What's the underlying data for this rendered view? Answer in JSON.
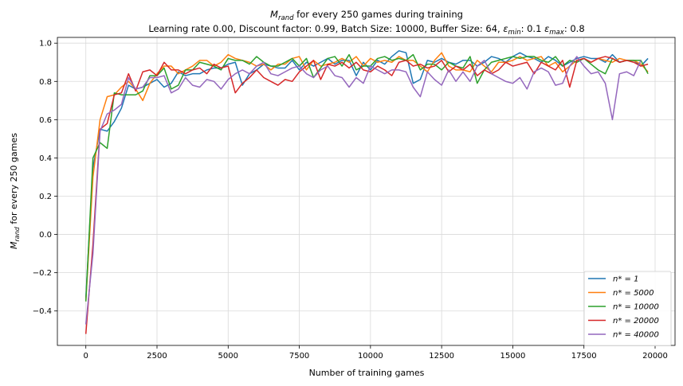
{
  "chart_data": {
    "type": "line",
    "title_main": "for every 250 games during training",
    "title_main_symbol": "M",
    "title_main_sub": "rand",
    "subtitle_prefix": "Learning rate 0.00, Discount factor: 0.99, Batch Size: 10000, Buffer Size: 64, ",
    "subtitle_eps_min_label": "min",
    "subtitle_eps_min_value": ": 0.1 ",
    "subtitle_eps_max_label": "max",
    "subtitle_eps_max_value": ": 0.8",
    "xlabel": "Number of training games",
    "ylabel_symbol": "M",
    "ylabel_sub": "rand",
    "ylabel_rest": " for every 250 games",
    "xlim": [
      -1000,
      20700
    ],
    "ylim": [
      -0.58,
      1.03
    ],
    "xticks": [
      0,
      2500,
      5000,
      7500,
      10000,
      12500,
      15000,
      17500,
      20000
    ],
    "yticks": [
      -0.4,
      -0.2,
      0.0,
      0.2,
      0.4,
      0.6,
      0.8,
      1.0
    ],
    "xtick_labels": [
      "0",
      "2500",
      "5000",
      "7500",
      "10000",
      "12500",
      "15000",
      "17500",
      "20000"
    ],
    "ytick_labels": [
      "−0.4",
      "−0.2",
      "0.0",
      "0.2",
      "0.4",
      "0.6",
      "0.8",
      "1.0"
    ],
    "grid": true,
    "legend_position": "lower-right",
    "x_start": 0,
    "x_step": 250,
    "series": [
      {
        "name": "n* = 1",
        "label_prefix": "n* = ",
        "label_value": "1",
        "color": "#1f77b4",
        "values": [
          -0.33,
          0.35,
          0.55,
          0.54,
          0.59,
          0.66,
          0.78,
          0.76,
          0.77,
          0.79,
          0.81,
          0.77,
          0.79,
          0.85,
          0.83,
          0.84,
          0.84,
          0.86,
          0.87,
          0.87,
          0.89,
          0.9,
          0.78,
          0.84,
          0.86,
          0.89,
          0.88,
          0.87,
          0.87,
          0.91,
          0.86,
          0.9,
          0.88,
          0.9,
          0.92,
          0.89,
          0.91,
          0.91,
          0.83,
          0.9,
          0.86,
          0.91,
          0.89,
          0.93,
          0.96,
          0.95,
          0.79,
          0.81,
          0.91,
          0.9,
          0.92,
          0.9,
          0.89,
          0.91,
          0.91,
          0.88,
          0.9,
          0.93,
          0.92,
          0.9,
          0.93,
          0.95,
          0.93,
          0.92,
          0.9,
          0.93,
          0.91,
          0.88,
          0.9,
          0.92,
          0.93,
          0.92,
          0.92,
          0.9,
          0.94,
          0.9,
          0.91,
          0.91,
          0.88,
          0.92
        ]
      },
      {
        "name": "n* = 5000",
        "label_prefix": "n* = ",
        "label_value": "5000",
        "color": "#ff7f0e",
        "values": [
          -0.35,
          0.3,
          0.6,
          0.72,
          0.73,
          0.77,
          0.8,
          0.76,
          0.7,
          0.79,
          0.84,
          0.88,
          0.88,
          0.84,
          0.86,
          0.88,
          0.91,
          0.91,
          0.88,
          0.9,
          0.94,
          0.92,
          0.91,
          0.9,
          0.88,
          0.89,
          0.86,
          0.89,
          0.89,
          0.92,
          0.93,
          0.86,
          0.91,
          0.88,
          0.89,
          0.9,
          0.92,
          0.9,
          0.93,
          0.88,
          0.92,
          0.9,
          0.91,
          0.9,
          0.93,
          0.91,
          0.91,
          0.88,
          0.85,
          0.91,
          0.95,
          0.88,
          0.86,
          0.86,
          0.85,
          0.91,
          0.88,
          0.85,
          0.9,
          0.9,
          0.91,
          0.93,
          0.91,
          0.92,
          0.93,
          0.88,
          0.9,
          0.85,
          0.88,
          0.91,
          0.92,
          0.9,
          0.92,
          0.91,
          0.9,
          0.92,
          0.91,
          0.91,
          0.89,
          0.85
        ]
      },
      {
        "name": "n* = 10000",
        "label_prefix": "n* = ",
        "label_value": "10000",
        "color": "#2ca02c",
        "values": [
          -0.35,
          0.4,
          0.48,
          0.45,
          0.74,
          0.73,
          0.73,
          0.73,
          0.75,
          0.83,
          0.83,
          0.87,
          0.76,
          0.78,
          0.86,
          0.86,
          0.9,
          0.89,
          0.88,
          0.86,
          0.92,
          0.91,
          0.91,
          0.89,
          0.93,
          0.9,
          0.88,
          0.88,
          0.9,
          0.92,
          0.88,
          0.92,
          0.82,
          0.87,
          0.92,
          0.93,
          0.88,
          0.94,
          0.86,
          0.88,
          0.88,
          0.92,
          0.93,
          0.91,
          0.92,
          0.91,
          0.94,
          0.86,
          0.89,
          0.89,
          0.86,
          0.9,
          0.88,
          0.87,
          0.93,
          0.79,
          0.86,
          0.9,
          0.91,
          0.92,
          0.93,
          0.92,
          0.93,
          0.93,
          0.91,
          0.9,
          0.93,
          0.88,
          0.91,
          0.9,
          0.92,
          0.89,
          0.86,
          0.84,
          0.92,
          0.9,
          0.91,
          0.91,
          0.91,
          0.84
        ]
      },
      {
        "name": "n* = 20000",
        "label_prefix": "n* = ",
        "label_value": "20000",
        "color": "#d62728",
        "values": [
          -0.52,
          -0.05,
          0.55,
          0.58,
          0.73,
          0.74,
          0.84,
          0.75,
          0.85,
          0.86,
          0.83,
          0.9,
          0.86,
          0.86,
          0.84,
          0.86,
          0.87,
          0.84,
          0.89,
          0.87,
          0.88,
          0.74,
          0.79,
          0.82,
          0.86,
          0.82,
          0.8,
          0.78,
          0.81,
          0.8,
          0.85,
          0.88,
          0.91,
          0.81,
          0.89,
          0.88,
          0.9,
          0.87,
          0.9,
          0.86,
          0.85,
          0.88,
          0.86,
          0.83,
          0.9,
          0.91,
          0.88,
          0.89,
          0.87,
          0.88,
          0.91,
          0.85,
          0.88,
          0.86,
          0.89,
          0.83,
          0.86,
          0.84,
          0.86,
          0.9,
          0.88,
          0.89,
          0.9,
          0.84,
          0.9,
          0.88,
          0.86,
          0.91,
          0.77,
          0.91,
          0.92,
          0.9,
          0.92,
          0.93,
          0.92,
          0.9,
          0.91,
          0.9,
          0.88,
          0.89
        ]
      },
      {
        "name": "n* = 40000",
        "label_prefix": "n* = ",
        "label_value": "40000",
        "color": "#9467bd",
        "values": [
          -0.47,
          -0.1,
          0.54,
          0.63,
          0.65,
          0.68,
          0.82,
          0.76,
          0.77,
          0.82,
          0.82,
          0.83,
          0.74,
          0.76,
          0.82,
          0.78,
          0.77,
          0.81,
          0.8,
          0.76,
          0.81,
          0.84,
          0.86,
          0.84,
          0.88,
          0.9,
          0.84,
          0.83,
          0.85,
          0.87,
          0.88,
          0.84,
          0.82,
          0.86,
          0.88,
          0.83,
          0.82,
          0.77,
          0.82,
          0.79,
          0.88,
          0.86,
          0.84,
          0.86,
          0.86,
          0.85,
          0.77,
          0.72,
          0.85,
          0.81,
          0.78,
          0.86,
          0.8,
          0.85,
          0.8,
          0.88,
          0.91,
          0.84,
          0.82,
          0.8,
          0.79,
          0.82,
          0.76,
          0.85,
          0.87,
          0.85,
          0.78,
          0.79,
          0.88,
          0.93,
          0.88,
          0.84,
          0.85,
          0.79,
          0.6,
          0.84,
          0.85,
          0.83,
          0.91
        ]
      }
    ]
  }
}
